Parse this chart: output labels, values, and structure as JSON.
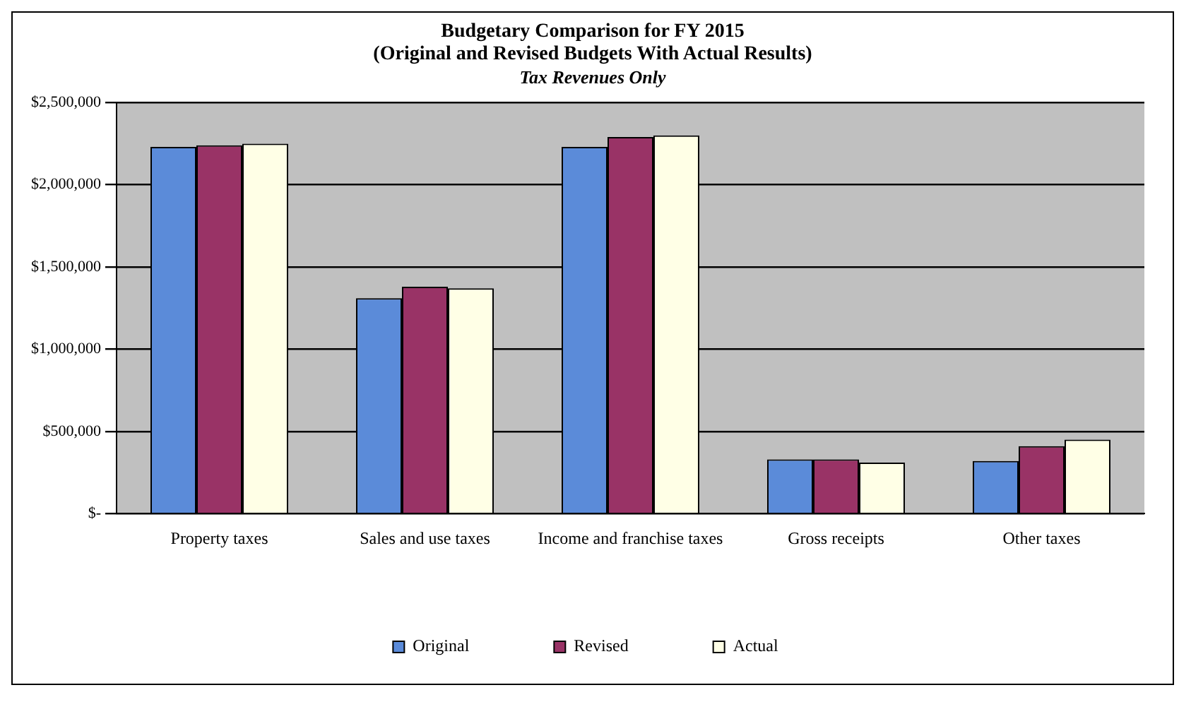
{
  "chart_data": {
    "type": "bar",
    "title": "Budgetary Comparison  for FY 2015",
    "subtitle": "(Original  and Revised Budgets With Actual Results)",
    "annotations": [
      "Tax Revenues Only"
    ],
    "categories": [
      "Property taxes",
      "Sales and use taxes",
      "Income and franchise taxes",
      "Gross receipts",
      "Other taxes"
    ],
    "series": [
      {
        "name": "Original",
        "color": "#5b8bd9",
        "values": [
          2230000,
          1310000,
          2230000,
          330000,
          320000
        ]
      },
      {
        "name": "Revised",
        "color": "#993366",
        "values": [
          2240000,
          1380000,
          2290000,
          330000,
          410000
        ]
      },
      {
        "name": "Actual",
        "color": "#ffffe6",
        "values": [
          2250000,
          1370000,
          2300000,
          310000,
          450000
        ]
      }
    ],
    "ylim": [
      0,
      2500000
    ],
    "yticks": [
      {
        "value": 0,
        "label": "$-"
      },
      {
        "value": 500000,
        "label": "$500,000"
      },
      {
        "value": 1000000,
        "label": "$1,000,000"
      },
      {
        "value": 1500000,
        "label": "$1,500,000"
      },
      {
        "value": 2000000,
        "label": "$2,000,000"
      },
      {
        "value": 2500000,
        "label": "$2,500,000"
      }
    ],
    "grid": "y",
    "legend": "bottom"
  }
}
